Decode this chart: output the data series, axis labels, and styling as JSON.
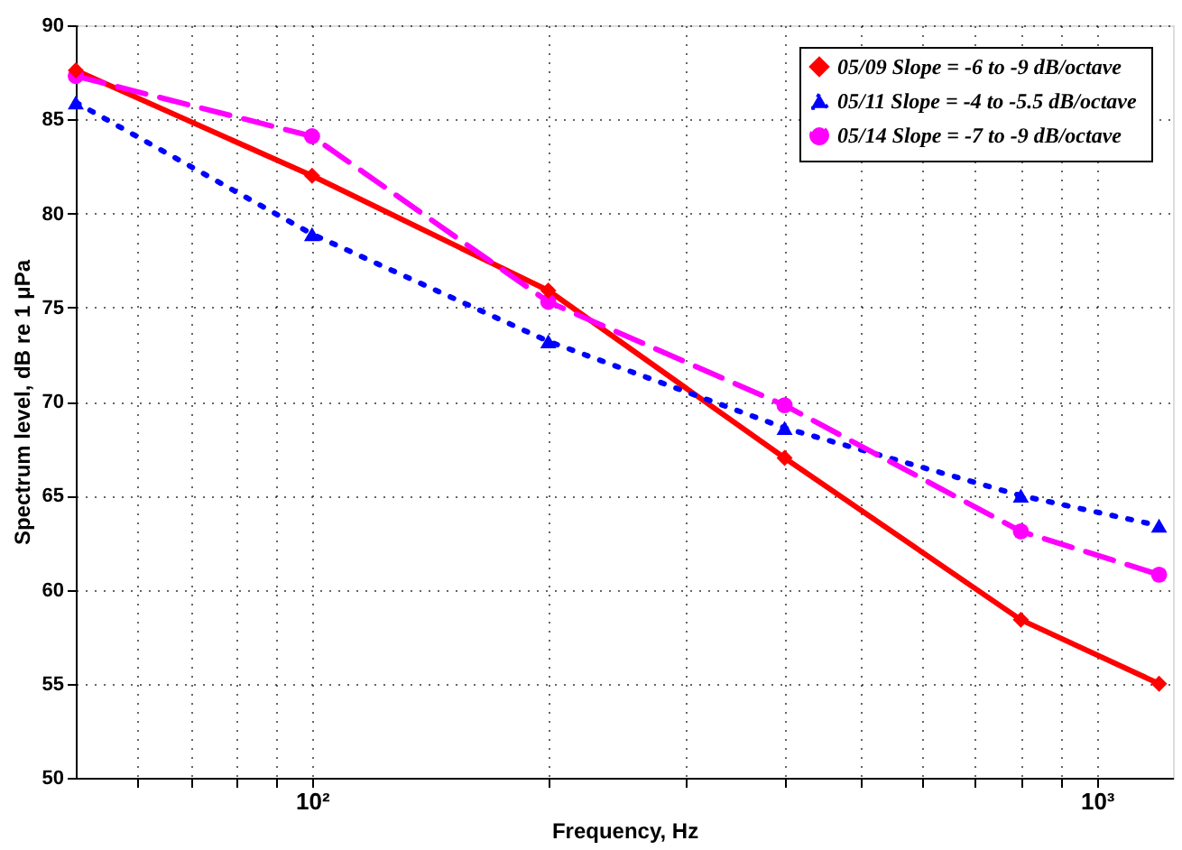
{
  "chart_data": {
    "type": "line",
    "xlabel": "Frequency, Hz",
    "ylabel": "Spectrum level, dB re 1 μPa",
    "x": [
      50,
      100,
      200,
      400,
      800,
      1200
    ],
    "series": [
      {
        "name": "05/09  Slope = -6 to -9 dB/octave",
        "color": "#ff0000",
        "marker": "diamond",
        "line_style": "solid",
        "values": [
          87.6,
          82.0,
          75.9,
          67.0,
          58.4,
          55.0
        ]
      },
      {
        "name": "05/11  Slope = -4 to -5.5 dB/octave",
        "color": "#0000ff",
        "marker": "triangle",
        "line_style": "dotted",
        "values": [
          85.9,
          78.9,
          73.2,
          68.6,
          65.0,
          63.4
        ]
      },
      {
        "name": "05/14  Slope = -7 to -9 dB/octave",
        "color": "#ff00ff",
        "marker": "circle",
        "line_style": "dashed",
        "values": [
          87.3,
          84.1,
          75.3,
          69.8,
          63.1,
          60.8
        ]
      }
    ],
    "log": "x",
    "xlim": [
      50,
      1250
    ],
    "xticks": [
      {
        "value": 60,
        "label": null
      },
      {
        "value": 70,
        "label": null
      },
      {
        "value": 80,
        "label": null
      },
      {
        "value": 90,
        "label": null
      },
      {
        "value": 100,
        "label": "10²"
      },
      {
        "value": 200,
        "label": null
      },
      {
        "value": 300,
        "label": null
      },
      {
        "value": 400,
        "label": null
      },
      {
        "value": 500,
        "label": null
      },
      {
        "value": 600,
        "label": null
      },
      {
        "value": 700,
        "label": null
      },
      {
        "value": 800,
        "label": null
      },
      {
        "value": 900,
        "label": null
      },
      {
        "value": 1000,
        "label": "10³"
      }
    ],
    "ylim": [
      50,
      90
    ],
    "yticks": [
      50,
      55,
      60,
      65,
      70,
      75,
      80,
      85,
      90
    ],
    "grid": true,
    "legend": "top right"
  }
}
